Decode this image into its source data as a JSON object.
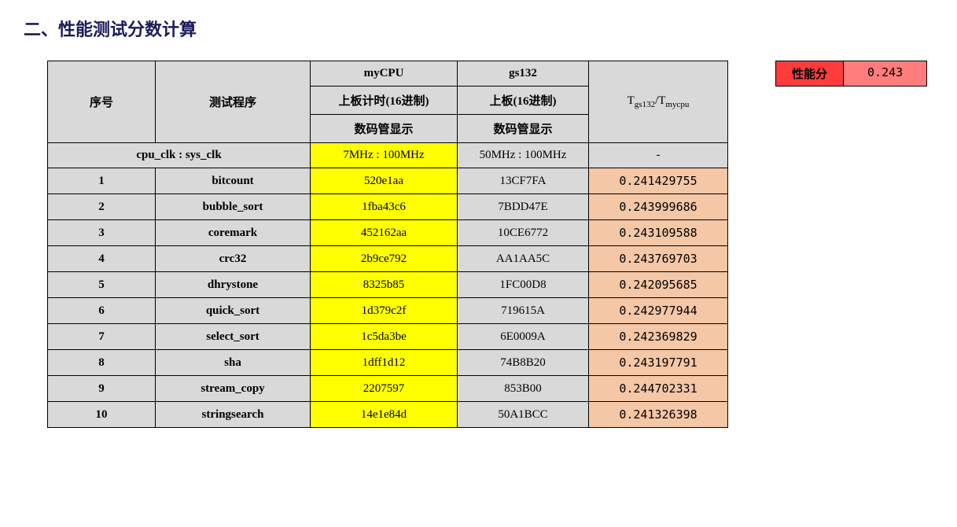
{
  "title": "二、性能测试分数计算",
  "badge": {
    "label": "性能分",
    "value": "0.243"
  },
  "colors": {
    "header_bg": "#d9d9d9",
    "yellow": "#ffff00",
    "orange": "#f4c7a7",
    "badge_label_bg": "#ff3b3b",
    "badge_value_bg": "#ff7d7d",
    "title_color": "#1a1a5c",
    "border": "#000000"
  },
  "table": {
    "header": {
      "seq": "序号",
      "prog": "测试程序",
      "mycpu": "myCPU",
      "gs132": "gs132",
      "ratio_html": "T<sub>gs132</sub>/T<sub>mycpu</sub>",
      "mycpu_sub": "上板计时(16进制)",
      "gs_sub": "上板(16进制)",
      "digit_disp": "数码管显示"
    },
    "clk_row": {
      "label": "cpu_clk : sys_clk",
      "mycpu": "7MHz : 100MHz",
      "gs132": "50MHz : 100MHz",
      "ratio": "-"
    },
    "rows": [
      {
        "seq": "1",
        "prog": "bitcount",
        "mycpu": "520e1aa",
        "gs": "13CF7FA",
        "ratio": "0.241429755"
      },
      {
        "seq": "2",
        "prog": "bubble_sort",
        "mycpu": "1fba43c6",
        "gs": "7BDD47E",
        "ratio": "0.243999686"
      },
      {
        "seq": "3",
        "prog": "coremark",
        "mycpu": "452162aa",
        "gs": "10CE6772",
        "ratio": "0.243109588"
      },
      {
        "seq": "4",
        "prog": "crc32",
        "mycpu": "2b9ce792",
        "gs": "AA1AA5C",
        "ratio": "0.243769703"
      },
      {
        "seq": "5",
        "prog": "dhrystone",
        "mycpu": "8325b85",
        "gs": "1FC00D8",
        "ratio": "0.242095685"
      },
      {
        "seq": "6",
        "prog": "quick_sort",
        "mycpu": "1d379c2f",
        "gs": "719615A",
        "ratio": "0.242977944"
      },
      {
        "seq": "7",
        "prog": "select_sort",
        "mycpu": "1c5da3be",
        "gs": "6E0009A",
        "ratio": "0.242369829"
      },
      {
        "seq": "8",
        "prog": "sha",
        "mycpu": "1dff1d12",
        "gs": "74B8B20",
        "ratio": "0.243197791"
      },
      {
        "seq": "9",
        "prog": "stream_copy",
        "mycpu": "2207597",
        "gs": "853B00",
        "ratio": "0.244702331"
      },
      {
        "seq": "10",
        "prog": "stringsearch",
        "mycpu": "14e1e84d",
        "gs": "50A1BCC",
        "ratio": "0.241326398"
      }
    ]
  }
}
